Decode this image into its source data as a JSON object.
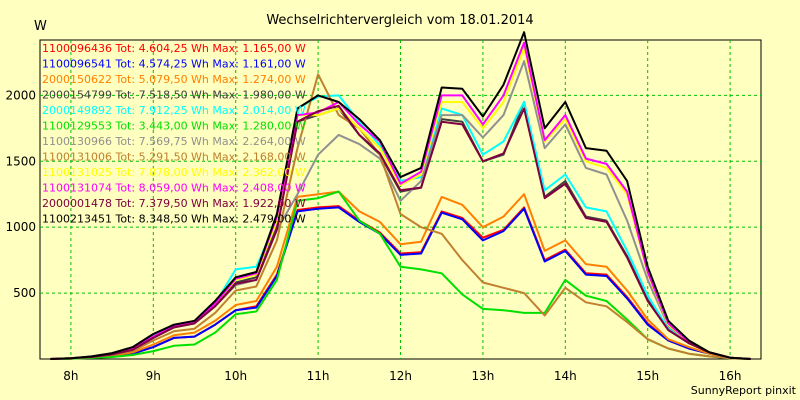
{
  "footer": "SunnyReport pinxit",
  "chart_data": {
    "type": "line",
    "title": "Wechselrichtervergleich vom 18.01.2014",
    "ylabel": "W",
    "xlabel": "",
    "x_ticks": [
      "8h",
      "9h",
      "10h",
      "11h",
      "12h",
      "13h",
      "14h",
      "15h",
      "16h"
    ],
    "y_ticks": [
      500,
      1000,
      1500,
      2000
    ],
    "ylim": [
      0,
      2420
    ],
    "xlim": [
      7.625,
      16.375
    ],
    "grid": true,
    "legend_position": "top-left",
    "x": [
      7.75,
      8.0,
      8.25,
      8.5,
      8.75,
      9.0,
      9.25,
      9.5,
      9.75,
      10.0,
      10.25,
      10.5,
      10.75,
      11.0,
      11.25,
      11.5,
      11.75,
      12.0,
      12.25,
      12.5,
      12.75,
      13.0,
      13.25,
      13.5,
      13.75,
      14.0,
      14.25,
      14.5,
      14.75,
      15.0,
      15.25,
      15.5,
      15.75,
      16.0,
      16.25
    ],
    "series": [
      {
        "name": "1100096436 Tot: 4.604,25 Wh Max: 1.165,00 W",
        "color": "#ff0000",
        "values": [
          0,
          3,
          10,
          20,
          40,
          90,
          160,
          170,
          260,
          370,
          400,
          640,
          1130,
          1150,
          1160,
          1050,
          960,
          800,
          810,
          1120,
          1070,
          920,
          980,
          1150,
          750,
          830,
          650,
          640,
          470,
          270,
          140,
          80,
          40,
          10,
          0
        ]
      },
      {
        "name": "1100096541 Tot: 4.574,25 Wh Max: 1.161,00 W",
        "color": "#0000ff",
        "values": [
          0,
          3,
          10,
          20,
          40,
          90,
          160,
          170,
          260,
          370,
          390,
          630,
          1120,
          1140,
          1150,
          1040,
          950,
          790,
          800,
          1110,
          1060,
          900,
          970,
          1140,
          740,
          820,
          640,
          630,
          460,
          260,
          140,
          80,
          40,
          10,
          0
        ]
      },
      {
        "name": "2000150622 Tot: 5.079,50 Wh Max: 1.274,00 W",
        "color": "#ff8000",
        "values": [
          0,
          3,
          12,
          25,
          50,
          110,
          180,
          200,
          290,
          410,
          440,
          700,
          1230,
          1250,
          1270,
          1120,
          1040,
          870,
          890,
          1230,
          1170,
          1000,
          1080,
          1250,
          820,
          900,
          720,
          700,
          520,
          300,
          150,
          90,
          40,
          10,
          0
        ]
      },
      {
        "name": "2000154799 Tot: 7.518,50 Wh Max: 1.980,00 W",
        "color": "#404040",
        "values": [
          0,
          5,
          15,
          35,
          70,
          160,
          240,
          270,
          410,
          580,
          620,
          1000,
          1800,
          1850,
          1900,
          1700,
          1550,
          1270,
          1300,
          1820,
          1800,
          1500,
          1550,
          1950,
          1230,
          1350,
          1080,
          1050,
          780,
          450,
          220,
          120,
          50,
          10,
          0
        ]
      },
      {
        "name": "2000149892 Tot: 7.912,25 Wh Max: 2.014,00 W",
        "color": "#00ffff",
        "values": [
          0,
          5,
          18,
          40,
          80,
          180,
          250,
          280,
          420,
          680,
          700,
          1050,
          1900,
          1990,
          2000,
          1800,
          1620,
          1350,
          1380,
          1900,
          1850,
          1550,
          1650,
          1950,
          1280,
          1400,
          1150,
          1120,
          820,
          480,
          230,
          130,
          50,
          10,
          0
        ]
      },
      {
        "name": "1100129553 Tot: 3.443,00 Wh Max: 1.280,00 W",
        "color": "#00e000",
        "values": [
          0,
          2,
          8,
          15,
          30,
          60,
          100,
          110,
          200,
          340,
          360,
          600,
          1200,
          1220,
          1270,
          1050,
          950,
          700,
          680,
          650,
          490,
          380,
          370,
          350,
          350,
          600,
          480,
          440,
          300,
          150,
          80,
          40,
          20,
          5,
          0
        ]
      },
      {
        "name": "1100130966 Tot: 7.569,75 Wh Max: 2.264,00 W",
        "color": "#909090",
        "values": [
          0,
          5,
          15,
          35,
          70,
          160,
          240,
          270,
          400,
          560,
          600,
          980,
          1250,
          1550,
          1700,
          1630,
          1520,
          1200,
          1350,
          1850,
          1850,
          1680,
          1850,
          2260,
          1600,
          1780,
          1450,
          1400,
          1050,
          600,
          250,
          130,
          50,
          10,
          0
        ]
      },
      {
        "name": "1100131006 Tot: 5.291,50 Wh Max: 2.168,00 W",
        "color": "#c08030",
        "values": [
          0,
          5,
          15,
          30,
          60,
          140,
          210,
          230,
          350,
          520,
          550,
          900,
          1600,
          2160,
          1850,
          1750,
          1550,
          1100,
          1000,
          950,
          750,
          580,
          540,
          500,
          330,
          540,
          430,
          400,
          280,
          150,
          80,
          40,
          20,
          5,
          0
        ]
      },
      {
        "name": "1100131025 Tot: 7.878,00 Wh Max: 2.362,00 W",
        "color": "#ffff00",
        "values": [
          0,
          5,
          18,
          40,
          80,
          170,
          250,
          280,
          420,
          600,
          640,
          1050,
          1850,
          1850,
          1900,
          1750,
          1600,
          1320,
          1400,
          1950,
          1950,
          1750,
          1950,
          2360,
          1650,
          1820,
          1500,
          1450,
          1250,
          650,
          260,
          130,
          50,
          10,
          0
        ]
      },
      {
        "name": "1100131074 Tot: 8.059,00 Wh Max: 2.408,00 W",
        "color": "#ff00ff",
        "values": [
          0,
          5,
          18,
          40,
          80,
          170,
          250,
          280,
          420,
          610,
          650,
          1080,
          1850,
          1870,
          1950,
          1780,
          1650,
          1330,
          1420,
          2000,
          2000,
          1780,
          2000,
          2400,
          1660,
          1850,
          1520,
          1480,
          1270,
          660,
          270,
          130,
          50,
          10,
          0
        ]
      },
      {
        "name": "2000001478 Tot: 7.379,50 Wh Max: 1.922,00 W",
        "color": "#800040",
        "values": [
          0,
          5,
          15,
          35,
          70,
          160,
          240,
          270,
          400,
          570,
          600,
          980,
          1800,
          1880,
          1920,
          1700,
          1560,
          1280,
          1300,
          1800,
          1780,
          1500,
          1560,
          1900,
          1220,
          1330,
          1070,
          1040,
          770,
          440,
          220,
          120,
          50,
          10,
          0
        ]
      },
      {
        "name": "1100213451 Tot: 8.348,50 Wh Max: 2.479,00 W",
        "color": "#000000",
        "values": [
          0,
          5,
          20,
          45,
          90,
          190,
          260,
          290,
          440,
          620,
          660,
          1100,
          1900,
          2000,
          1950,
          1820,
          1660,
          1380,
          1450,
          2060,
          2050,
          1840,
          2080,
          2479,
          1750,
          1950,
          1600,
          1580,
          1350,
          700,
          290,
          140,
          50,
          10,
          0
        ]
      }
    ]
  }
}
